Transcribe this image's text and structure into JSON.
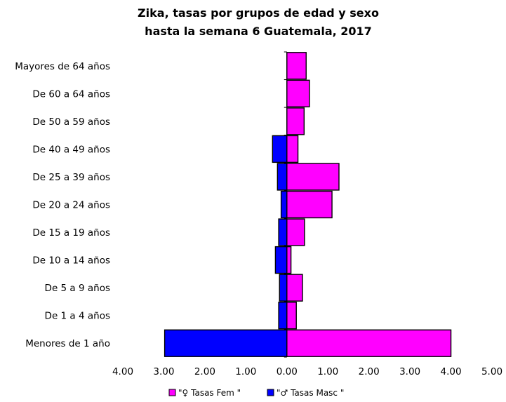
{
  "chart_data": {
    "type": "bar",
    "orientation": "horizontal",
    "title_lines": [
      "Zika, tasas por grupos de edad y sexo",
      "hasta la semana 6 Guatemala, 2017"
    ],
    "categories": [
      "Menores de 1 año",
      "De 1 a 4 años",
      "De 5 a 9 años",
      "De 10 a 14 años",
      "De 15 a 19 años",
      "De 20 a 24 años",
      "De 25 a 39 años",
      "De 40 a 49 años",
      "De 50 a 59 años",
      "De 60 a 64 años",
      "Mayores de 64 años"
    ],
    "series": [
      {
        "name": "\"♀ Tasas  Fem \"",
        "color": "#ff00ff",
        "direction": "right",
        "values": [
          4.0,
          0.23,
          0.38,
          0.1,
          0.43,
          1.1,
          1.27,
          0.27,
          0.42,
          0.55,
          0.47
        ]
      },
      {
        "name": "\"♂ Tasas Masc \"",
        "color": "#0000ff",
        "direction": "left",
        "values": [
          2.98,
          0.2,
          0.18,
          0.28,
          0.2,
          0.14,
          0.23,
          0.35,
          0.0,
          0.0,
          0.0
        ]
      }
    ],
    "xlim": [
      -4,
      5
    ],
    "x_ticks": [
      -4,
      -3,
      -2,
      -1,
      0,
      1,
      2,
      3,
      4,
      5
    ],
    "x_tick_labels": [
      "4.00",
      "3.00",
      "2.00",
      "1.00",
      "0.00",
      "1.00",
      "2.00",
      "3.00",
      "4.00",
      "5.00"
    ],
    "xlabel": "",
    "ylabel": "",
    "grid": false,
    "legend_position": "bottom"
  }
}
